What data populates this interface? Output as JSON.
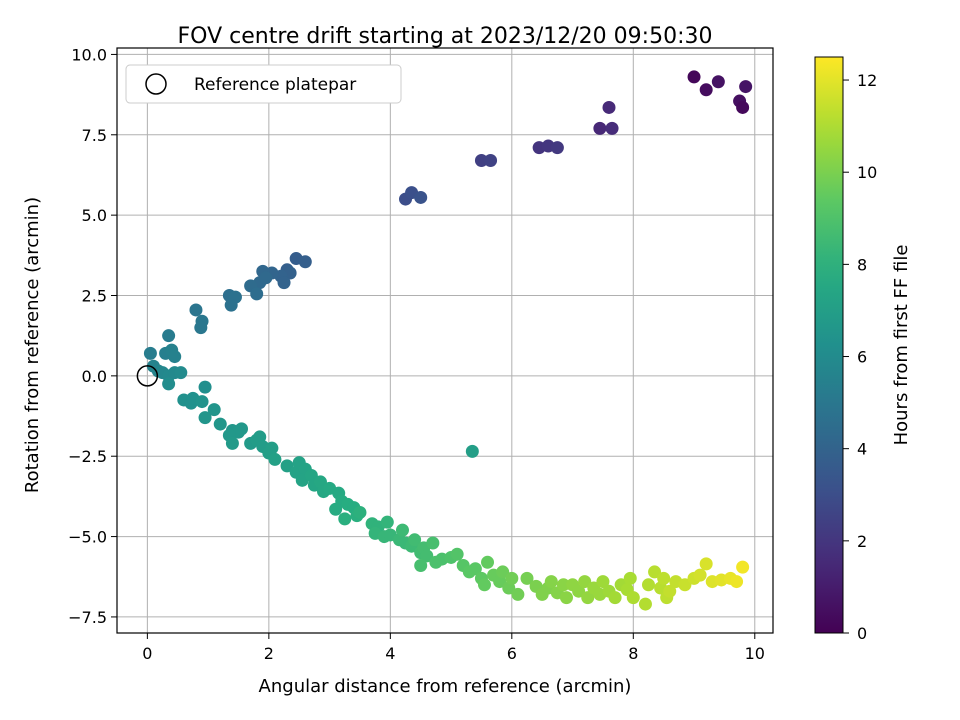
{
  "chart_data": {
    "type": "scatter",
    "title": "FOV centre drift starting at 2023/12/20 09:50:30",
    "xlabel": "Angular distance from reference (arcmin)",
    "ylabel": "Rotation from reference (arcmin)",
    "xlim": [
      -0.5,
      10.3
    ],
    "ylim": [
      -8.0,
      10.2
    ],
    "x_ticks": [
      0,
      2,
      4,
      6,
      8,
      10
    ],
    "y_ticks": [
      -7.5,
      -5.0,
      -2.5,
      0.0,
      2.5,
      5.0,
      7.5,
      10.0
    ],
    "grid": true,
    "legend": {
      "position": "upper-left",
      "entries": [
        {
          "label": "Reference platepar",
          "marker": "open-circle"
        }
      ]
    },
    "reference_point": {
      "x": 0.0,
      "y": 0.0
    },
    "colorbar": {
      "label": "Hours from first FF file",
      "colormap": "viridis",
      "range": [
        0,
        12.5
      ],
      "ticks": [
        0,
        2,
        4,
        6,
        8,
        10,
        12
      ]
    },
    "points": [
      {
        "x": 9.0,
        "y": 9.3,
        "c": 0.2
      },
      {
        "x": 9.2,
        "y": 8.9,
        "c": 0.4
      },
      {
        "x": 9.4,
        "y": 9.15,
        "c": 0.6
      },
      {
        "x": 9.75,
        "y": 8.55,
        "c": 0.5
      },
      {
        "x": 9.8,
        "y": 8.35,
        "c": 0.3
      },
      {
        "x": 9.85,
        "y": 9.0,
        "c": 0.7
      },
      {
        "x": 7.45,
        "y": 7.7,
        "c": 1.4
      },
      {
        "x": 7.6,
        "y": 8.35,
        "c": 1.5
      },
      {
        "x": 7.65,
        "y": 7.7,
        "c": 1.6
      },
      {
        "x": 6.45,
        "y": 7.1,
        "c": 1.9
      },
      {
        "x": 6.6,
        "y": 7.15,
        "c": 2.0
      },
      {
        "x": 6.75,
        "y": 7.1,
        "c": 2.1
      },
      {
        "x": 5.5,
        "y": 6.7,
        "c": 2.4
      },
      {
        "x": 5.65,
        "y": 6.7,
        "c": 2.5
      },
      {
        "x": 4.25,
        "y": 5.5,
        "c": 3.0
      },
      {
        "x": 4.35,
        "y": 5.7,
        "c": 3.1
      },
      {
        "x": 4.5,
        "y": 5.55,
        "c": 3.2
      },
      {
        "x": 2.45,
        "y": 3.65,
        "c": 3.7
      },
      {
        "x": 2.6,
        "y": 3.55,
        "c": 3.8
      },
      {
        "x": 2.3,
        "y": 3.3,
        "c": 3.8
      },
      {
        "x": 2.35,
        "y": 3.2,
        "c": 3.9
      },
      {
        "x": 2.2,
        "y": 3.1,
        "c": 4.0
      },
      {
        "x": 2.25,
        "y": 2.9,
        "c": 4.0
      },
      {
        "x": 2.05,
        "y": 3.2,
        "c": 4.1
      },
      {
        "x": 1.9,
        "y": 3.25,
        "c": 4.2
      },
      {
        "x": 1.85,
        "y": 2.9,
        "c": 4.3
      },
      {
        "x": 1.95,
        "y": 3.05,
        "c": 4.3
      },
      {
        "x": 1.7,
        "y": 2.8,
        "c": 4.4
      },
      {
        "x": 1.8,
        "y": 2.55,
        "c": 4.5
      },
      {
        "x": 1.35,
        "y": 2.5,
        "c": 4.6
      },
      {
        "x": 1.45,
        "y": 2.45,
        "c": 4.7
      },
      {
        "x": 1.38,
        "y": 2.2,
        "c": 4.7
      },
      {
        "x": 0.8,
        "y": 2.05,
        "c": 4.9
      },
      {
        "x": 0.9,
        "y": 1.7,
        "c": 5.0
      },
      {
        "x": 0.88,
        "y": 1.5,
        "c": 5.0
      },
      {
        "x": 0.35,
        "y": 1.25,
        "c": 5.2
      },
      {
        "x": 0.05,
        "y": 0.7,
        "c": 5.3
      },
      {
        "x": 0.3,
        "y": 0.7,
        "c": 5.4
      },
      {
        "x": 0.4,
        "y": 0.8,
        "c": 5.5
      },
      {
        "x": 0.45,
        "y": 0.6,
        "c": 5.5
      },
      {
        "x": 0.1,
        "y": 0.3,
        "c": 5.6
      },
      {
        "x": 0.18,
        "y": 0.15,
        "c": 5.7
      },
      {
        "x": 0.25,
        "y": 0.1,
        "c": 5.8
      },
      {
        "x": 0.35,
        "y": 0.0,
        "c": 5.9
      },
      {
        "x": 0.45,
        "y": 0.1,
        "c": 5.9
      },
      {
        "x": 0.55,
        "y": 0.1,
        "c": 6.0
      },
      {
        "x": 0.35,
        "y": -0.25,
        "c": 6.1
      },
      {
        "x": 0.95,
        "y": -0.35,
        "c": 6.2
      },
      {
        "x": 0.6,
        "y": -0.75,
        "c": 6.3
      },
      {
        "x": 0.72,
        "y": -0.85,
        "c": 6.3
      },
      {
        "x": 0.75,
        "y": -0.7,
        "c": 6.3
      },
      {
        "x": 0.9,
        "y": -0.8,
        "c": 6.4
      },
      {
        "x": 1.1,
        "y": -1.05,
        "c": 6.5
      },
      {
        "x": 0.95,
        "y": -1.3,
        "c": 6.5
      },
      {
        "x": 1.2,
        "y": -1.5,
        "c": 6.6
      },
      {
        "x": 1.4,
        "y": -1.7,
        "c": 6.6
      },
      {
        "x": 1.5,
        "y": -1.75,
        "c": 6.7
      },
      {
        "x": 1.55,
        "y": -1.65,
        "c": 6.7
      },
      {
        "x": 1.35,
        "y": -1.85,
        "c": 6.7
      },
      {
        "x": 1.4,
        "y": -2.1,
        "c": 6.8
      },
      {
        "x": 1.7,
        "y": -2.1,
        "c": 6.8
      },
      {
        "x": 1.8,
        "y": -2.0,
        "c": 6.9
      },
      {
        "x": 1.85,
        "y": -1.9,
        "c": 6.9
      },
      {
        "x": 1.9,
        "y": -2.2,
        "c": 6.9
      },
      {
        "x": 2.05,
        "y": -2.25,
        "c": 7.0
      },
      {
        "x": 2.0,
        "y": -2.4,
        "c": 7.0
      },
      {
        "x": 2.1,
        "y": -2.6,
        "c": 7.1
      },
      {
        "x": 2.3,
        "y": -2.8,
        "c": 7.1
      },
      {
        "x": 2.45,
        "y": -3.0,
        "c": 7.2
      },
      {
        "x": 2.5,
        "y": -2.7,
        "c": 7.2
      },
      {
        "x": 2.6,
        "y": -2.9,
        "c": 7.3
      },
      {
        "x": 2.55,
        "y": -3.25,
        "c": 7.3
      },
      {
        "x": 2.7,
        "y": -3.1,
        "c": 7.4
      },
      {
        "x": 2.75,
        "y": -3.4,
        "c": 7.4
      },
      {
        "x": 2.85,
        "y": -3.3,
        "c": 7.5
      },
      {
        "x": 2.9,
        "y": -3.6,
        "c": 7.5
      },
      {
        "x": 3.0,
        "y": -3.5,
        "c": 7.6
      },
      {
        "x": 3.15,
        "y": -3.65,
        "c": 7.6
      },
      {
        "x": 3.2,
        "y": -3.9,
        "c": 7.7
      },
      {
        "x": 3.1,
        "y": -4.15,
        "c": 7.7
      },
      {
        "x": 3.3,
        "y": -4.0,
        "c": 7.8
      },
      {
        "x": 3.4,
        "y": -4.1,
        "c": 7.8
      },
      {
        "x": 3.25,
        "y": -4.45,
        "c": 7.9
      },
      {
        "x": 3.45,
        "y": -4.35,
        "c": 7.9
      },
      {
        "x": 3.5,
        "y": -4.25,
        "c": 8.0
      },
      {
        "x": 3.7,
        "y": -4.6,
        "c": 8.1
      },
      {
        "x": 3.8,
        "y": -4.7,
        "c": 8.1
      },
      {
        "x": 3.95,
        "y": -4.55,
        "c": 8.2
      },
      {
        "x": 3.75,
        "y": -4.9,
        "c": 8.2
      },
      {
        "x": 3.9,
        "y": -5.0,
        "c": 8.3
      },
      {
        "x": 4.0,
        "y": -4.95,
        "c": 8.3
      },
      {
        "x": 4.15,
        "y": -5.1,
        "c": 8.4
      },
      {
        "x": 4.25,
        "y": -5.2,
        "c": 8.4
      },
      {
        "x": 4.2,
        "y": -4.8,
        "c": 8.5
      },
      {
        "x": 4.35,
        "y": -5.3,
        "c": 8.5
      },
      {
        "x": 4.4,
        "y": -5.1,
        "c": 8.6
      },
      {
        "x": 4.5,
        "y": -5.5,
        "c": 8.6
      },
      {
        "x": 4.55,
        "y": -5.35,
        "c": 8.7
      },
      {
        "x": 4.6,
        "y": -5.6,
        "c": 8.7
      },
      {
        "x": 4.5,
        "y": -5.9,
        "c": 8.8
      },
      {
        "x": 4.7,
        "y": -5.2,
        "c": 8.8
      },
      {
        "x": 4.75,
        "y": -5.8,
        "c": 8.9
      },
      {
        "x": 4.85,
        "y": -5.7,
        "c": 8.9
      },
      {
        "x": 5.0,
        "y": -5.65,
        "c": 9.0
      },
      {
        "x": 5.1,
        "y": -5.55,
        "c": 9.1
      },
      {
        "x": 5.2,
        "y": -5.9,
        "c": 9.2
      },
      {
        "x": 5.3,
        "y": -6.1,
        "c": 9.3
      },
      {
        "x": 5.4,
        "y": -6.0,
        "c": 9.3
      },
      {
        "x": 5.5,
        "y": -6.3,
        "c": 9.4
      },
      {
        "x": 5.35,
        "y": -2.35,
        "c": 7.0
      },
      {
        "x": 5.6,
        "y": -5.8,
        "c": 9.5
      },
      {
        "x": 5.55,
        "y": -6.5,
        "c": 9.5
      },
      {
        "x": 5.7,
        "y": -6.2,
        "c": 9.6
      },
      {
        "x": 5.8,
        "y": -6.4,
        "c": 9.6
      },
      {
        "x": 5.85,
        "y": -6.1,
        "c": 9.7
      },
      {
        "x": 5.95,
        "y": -6.6,
        "c": 9.7
      },
      {
        "x": 6.0,
        "y": -6.3,
        "c": 9.8
      },
      {
        "x": 6.1,
        "y": -6.8,
        "c": 9.8
      },
      {
        "x": 6.25,
        "y": -6.3,
        "c": 9.9
      },
      {
        "x": 6.4,
        "y": -6.55,
        "c": 10.0
      },
      {
        "x": 6.5,
        "y": -6.8,
        "c": 10.1
      },
      {
        "x": 6.6,
        "y": -6.6,
        "c": 10.1
      },
      {
        "x": 6.65,
        "y": -6.4,
        "c": 10.2
      },
      {
        "x": 6.75,
        "y": -6.75,
        "c": 10.2
      },
      {
        "x": 6.85,
        "y": -6.5,
        "c": 10.3
      },
      {
        "x": 6.9,
        "y": -6.9,
        "c": 10.3
      },
      {
        "x": 7.0,
        "y": -6.5,
        "c": 10.4
      },
      {
        "x": 7.1,
        "y": -6.7,
        "c": 10.4
      },
      {
        "x": 7.2,
        "y": -6.4,
        "c": 10.5
      },
      {
        "x": 7.25,
        "y": -6.9,
        "c": 10.5
      },
      {
        "x": 7.35,
        "y": -6.6,
        "c": 10.6
      },
      {
        "x": 7.45,
        "y": -6.8,
        "c": 10.6
      },
      {
        "x": 7.5,
        "y": -6.4,
        "c": 10.7
      },
      {
        "x": 7.6,
        "y": -6.7,
        "c": 10.7
      },
      {
        "x": 7.7,
        "y": -6.9,
        "c": 10.8
      },
      {
        "x": 7.8,
        "y": -6.5,
        "c": 10.8
      },
      {
        "x": 7.9,
        "y": -6.65,
        "c": 10.9
      },
      {
        "x": 7.95,
        "y": -6.3,
        "c": 10.9
      },
      {
        "x": 8.0,
        "y": -6.9,
        "c": 11.0
      },
      {
        "x": 8.2,
        "y": -7.1,
        "c": 11.1
      },
      {
        "x": 8.25,
        "y": -6.5,
        "c": 11.1
      },
      {
        "x": 8.35,
        "y": -6.1,
        "c": 11.2
      },
      {
        "x": 8.45,
        "y": -6.6,
        "c": 11.2
      },
      {
        "x": 8.5,
        "y": -6.3,
        "c": 11.3
      },
      {
        "x": 8.55,
        "y": -6.9,
        "c": 11.3
      },
      {
        "x": 8.6,
        "y": -6.7,
        "c": 11.4
      },
      {
        "x": 8.7,
        "y": -6.4,
        "c": 11.4
      },
      {
        "x": 8.85,
        "y": -6.5,
        "c": 11.5
      },
      {
        "x": 9.0,
        "y": -6.3,
        "c": 11.6
      },
      {
        "x": 9.1,
        "y": -6.2,
        "c": 11.7
      },
      {
        "x": 9.2,
        "y": -5.85,
        "c": 11.8
      },
      {
        "x": 9.3,
        "y": -6.4,
        "c": 11.9
      },
      {
        "x": 9.45,
        "y": -6.35,
        "c": 12.0
      },
      {
        "x": 9.6,
        "y": -6.3,
        "c": 12.1
      },
      {
        "x": 9.7,
        "y": -6.4,
        "c": 12.2
      },
      {
        "x": 9.8,
        "y": -5.95,
        "c": 12.3
      }
    ]
  }
}
